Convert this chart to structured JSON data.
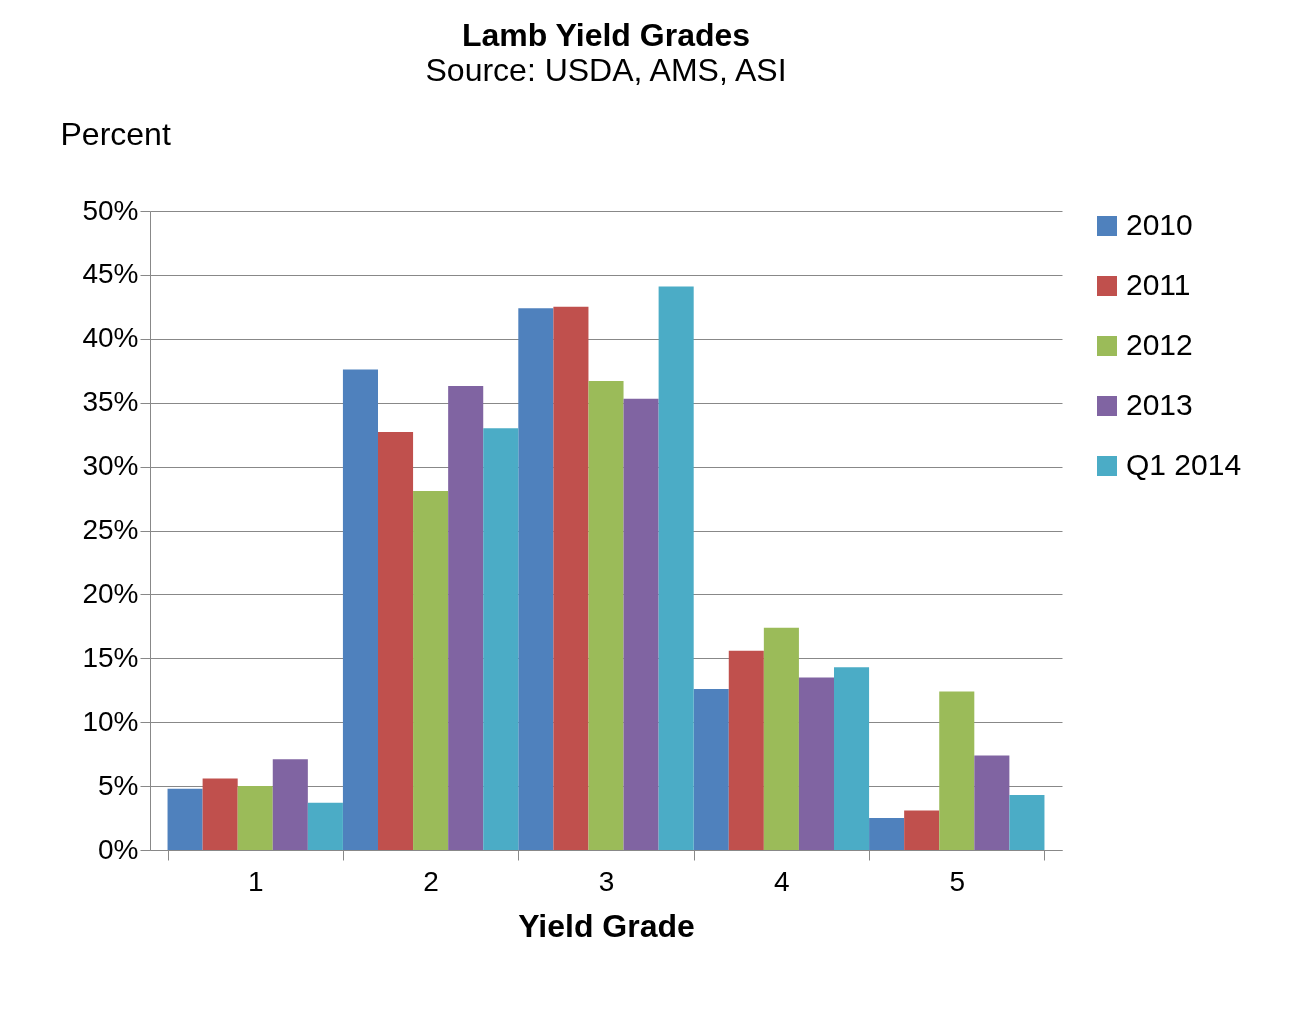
{
  "chart_data": {
    "type": "bar",
    "title": "Lamb Yield Grades",
    "subtitle": "Source: USDA, AMS, ASI",
    "xlabel": "Yield Grade",
    "ylabel": "Percent",
    "categories": [
      "1",
      "2",
      "3",
      "4",
      "5"
    ],
    "series": [
      {
        "name": "2010",
        "color": "#4f81bd",
        "values": [
          4.8,
          37.6,
          42.4,
          12.6,
          2.5
        ]
      },
      {
        "name": "2011",
        "color": "#c0504d",
        "values": [
          5.6,
          32.7,
          42.5,
          15.6,
          3.1
        ]
      },
      {
        "name": "2012",
        "color": "#9bbb59",
        "values": [
          5.0,
          28.1,
          36.7,
          17.4,
          12.4
        ]
      },
      {
        "name": "2013",
        "color": "#8064a2",
        "values": [
          7.1,
          36.3,
          35.3,
          13.5,
          7.4
        ]
      },
      {
        "name": "Q1 2014",
        "color": "#4bacc6",
        "values": [
          3.7,
          33.0,
          44.1,
          14.3,
          4.3
        ]
      }
    ],
    "ylim": [
      0,
      50
    ],
    "yticks": [
      {
        "value": 0,
        "label": "0%"
      },
      {
        "value": 5,
        "label": "5%"
      },
      {
        "value": 10,
        "label": "10%"
      },
      {
        "value": 15,
        "label": "15%"
      },
      {
        "value": 20,
        "label": "20%"
      },
      {
        "value": 25,
        "label": "25%"
      },
      {
        "value": 30,
        "label": "30%"
      },
      {
        "value": 35,
        "label": "35%"
      },
      {
        "value": 40,
        "label": "40%"
      },
      {
        "value": 45,
        "label": "45%"
      },
      {
        "value": 50,
        "label": "50%"
      }
    ],
    "grid": "y",
    "legend": "right"
  }
}
